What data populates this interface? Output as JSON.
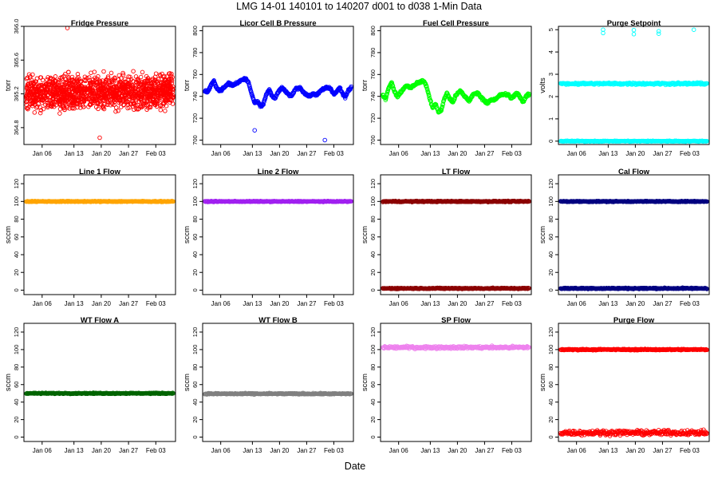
{
  "header": {
    "title": "LMG   14-01    140101 to 140207     d001 to d038   1-Min Data",
    "xlabel": "Date"
  },
  "chart_data": [
    {
      "type": "scatter",
      "title": "Fridge Pressure",
      "ylabel": "torr",
      "ylim": [
        364.6,
        366.0
      ],
      "yticks": [
        "364.8",
        "365.2",
        "365.6",
        "366.0"
      ],
      "color": "#ff0000",
      "xticks": [
        "Jan 06",
        "Jan 13",
        "Jan 20",
        "Jan 27",
        "Feb 03"
      ],
      "series": [
        {
          "name": "band",
          "kind": "noise",
          "center": 365.22,
          "spread": 0.28,
          "drift": 0.1,
          "count": 1400
        }
      ],
      "outliers": [
        {
          "x": 0.28,
          "y": 365.98
        },
        {
          "x": 0.5,
          "y": 364.68
        }
      ]
    },
    {
      "type": "scatter",
      "title": "Licor Cell B Pressure",
      "ylabel": "torr",
      "ylim": [
        696,
        804
      ],
      "yticks": [
        "700",
        "720",
        "740",
        "760",
        "780",
        "800"
      ],
      "color": "#0000ff",
      "xticks": [
        "Jan 06",
        "Jan 13",
        "Jan 20",
        "Jan 27",
        "Feb 03"
      ],
      "series": [
        {
          "name": "trace",
          "kind": "curve",
          "points": [
            [
              0,
              745
            ],
            [
              0.02,
              744
            ],
            [
              0.04,
              750
            ],
            [
              0.06,
              754
            ],
            [
              0.08,
              748
            ],
            [
              0.1,
              745
            ],
            [
              0.13,
              748
            ],
            [
              0.16,
              752
            ],
            [
              0.19,
              750
            ],
            [
              0.22,
              752
            ],
            [
              0.25,
              755
            ],
            [
              0.28,
              756
            ],
            [
              0.3,
              752
            ],
            [
              0.32,
              742
            ],
            [
              0.34,
              734
            ],
            [
              0.36,
              735
            ],
            [
              0.38,
              731
            ],
            [
              0.4,
              733
            ],
            [
              0.42,
              742
            ],
            [
              0.44,
              746
            ],
            [
              0.46,
              740
            ],
            [
              0.48,
              738
            ],
            [
              0.5,
              744
            ],
            [
              0.53,
              748
            ],
            [
              0.56,
              743
            ],
            [
              0.59,
              740
            ],
            [
              0.62,
              747
            ],
            [
              0.65,
              748
            ],
            [
              0.68,
              743
            ],
            [
              0.71,
              740
            ],
            [
              0.74,
              742
            ],
            [
              0.77,
              742
            ],
            [
              0.8,
              746
            ],
            [
              0.83,
              748
            ],
            [
              0.86,
              747
            ],
            [
              0.88,
              742
            ],
            [
              0.9,
              744
            ],
            [
              0.92,
              748
            ],
            [
              0.94,
              743
            ],
            [
              0.96,
              739
            ],
            [
              0.98,
              745
            ],
            [
              1.0,
              748
            ]
          ],
          "spread": 1.5
        }
      ],
      "outliers": [
        {
          "x": 0.34,
          "y": 709
        },
        {
          "x": 0.82,
          "y": 700
        }
      ]
    },
    {
      "type": "scatter",
      "title": "Fuel Cell Pressure",
      "ylabel": "torr",
      "ylim": [
        696,
        804
      ],
      "yticks": [
        "700",
        "720",
        "740",
        "760",
        "780",
        "800"
      ],
      "color": "#00ff00",
      "xticks": [
        "Jan 06",
        "Jan 13",
        "Jan 20",
        "Jan 27",
        "Feb 03"
      ],
      "series": [
        {
          "name": "trace",
          "kind": "curve",
          "points": [
            [
              0,
              741
            ],
            [
              0.02,
              738
            ],
            [
              0.04,
              748
            ],
            [
              0.06,
              753
            ],
            [
              0.08,
              744
            ],
            [
              0.1,
              740
            ],
            [
              0.13,
              745
            ],
            [
              0.16,
              750
            ],
            [
              0.19,
              748
            ],
            [
              0.22,
              751
            ],
            [
              0.25,
              753
            ],
            [
              0.28,
              754
            ],
            [
              0.3,
              749
            ],
            [
              0.32,
              738
            ],
            [
              0.34,
              730
            ],
            [
              0.36,
              733
            ],
            [
              0.38,
              726
            ],
            [
              0.4,
              727
            ],
            [
              0.42,
              738
            ],
            [
              0.44,
              743
            ],
            [
              0.46,
              737
            ],
            [
              0.48,
              735
            ],
            [
              0.5,
              741
            ],
            [
              0.53,
              745
            ],
            [
              0.56,
              740
            ],
            [
              0.59,
              736
            ],
            [
              0.62,
              742
            ],
            [
              0.65,
              743
            ],
            [
              0.68,
              738
            ],
            [
              0.71,
              734
            ],
            [
              0.74,
              737
            ],
            [
              0.77,
              737
            ],
            [
              0.8,
              741
            ],
            [
              0.83,
              742
            ],
            [
              0.86,
              741
            ],
            [
              0.88,
              738
            ],
            [
              0.9,
              741
            ],
            [
              0.92,
              743
            ],
            [
              0.94,
              739
            ],
            [
              0.96,
              735
            ],
            [
              0.98,
              740
            ],
            [
              1.0,
              742
            ]
          ],
          "spread": 1.6
        }
      ],
      "outliers": []
    },
    {
      "type": "scatter",
      "title": "Purge Setpoint",
      "ylabel": "volts",
      "ylim": [
        -0.15,
        5.15
      ],
      "yticks": [
        "0",
        "1",
        "2",
        "3",
        "4",
        "5"
      ],
      "color": "#00ffff",
      "xticks": [
        "Jan 06",
        "Jan 13",
        "Jan 20",
        "Jan 27",
        "Feb 03"
      ],
      "series": [
        {
          "name": "high",
          "kind": "band",
          "value": 2.58,
          "spread": 0.07
        },
        {
          "name": "low",
          "kind": "band",
          "value": 0.0,
          "spread": 0.03
        }
      ],
      "outliers": [
        {
          "x": 0.29,
          "y": 5.0
        },
        {
          "x": 0.29,
          "y": 4.85
        },
        {
          "x": 0.5,
          "y": 4.98
        },
        {
          "x": 0.5,
          "y": 4.8
        },
        {
          "x": 0.67,
          "y": 4.93
        },
        {
          "x": 0.67,
          "y": 4.82
        },
        {
          "x": 0.91,
          "y": 5.0
        }
      ]
    },
    {
      "type": "scatter",
      "title": "Line 1 Flow",
      "ylabel": "sccm",
      "ylim": [
        -5,
        130
      ],
      "yticks": [
        "0",
        "20",
        "40",
        "60",
        "80",
        "100",
        "120"
      ],
      "color": "#ffa500",
      "xticks": [
        "Jan 06",
        "Jan 13",
        "Jan 20",
        "Jan 27",
        "Feb 03"
      ],
      "series": [
        {
          "name": "flow",
          "kind": "band",
          "value": 100,
          "spread": 0.7
        }
      ],
      "outliers": []
    },
    {
      "type": "scatter",
      "title": "Line 2 Flow",
      "ylabel": "sccm",
      "ylim": [
        -5,
        130
      ],
      "yticks": [
        "0",
        "20",
        "40",
        "60",
        "80",
        "100",
        "120"
      ],
      "color": "#a020f0",
      "xticks": [
        "Jan 06",
        "Jan 13",
        "Jan 20",
        "Jan 27",
        "Feb 03"
      ],
      "series": [
        {
          "name": "flow",
          "kind": "band",
          "value": 100,
          "spread": 0.7
        }
      ],
      "outliers": []
    },
    {
      "type": "scatter",
      "title": "LT Flow",
      "ylabel": "sccm",
      "ylim": [
        -5,
        130
      ],
      "yticks": [
        "0",
        "20",
        "40",
        "60",
        "80",
        "100",
        "120"
      ],
      "color": "#8b0000",
      "xticks": [
        "Jan 06",
        "Jan 13",
        "Jan 20",
        "Jan 27",
        "Feb 03"
      ],
      "series": [
        {
          "name": "high",
          "kind": "band",
          "value": 100,
          "spread": 0.9
        },
        {
          "name": "low",
          "kind": "band",
          "value": 2,
          "spread": 0.9
        }
      ],
      "outliers": []
    },
    {
      "type": "scatter",
      "title": "Cal Flow",
      "ylabel": "sccm",
      "ylim": [
        -5,
        130
      ],
      "yticks": [
        "0",
        "20",
        "40",
        "60",
        "80",
        "100",
        "120"
      ],
      "color": "#000080",
      "xticks": [
        "Jan 06",
        "Jan 13",
        "Jan 20",
        "Jan 27",
        "Feb 03"
      ],
      "series": [
        {
          "name": "high",
          "kind": "band",
          "value": 100,
          "spread": 0.8
        },
        {
          "name": "low",
          "kind": "band",
          "value": 2,
          "spread": 1.0
        }
      ],
      "outliers": []
    },
    {
      "type": "scatter",
      "title": "WT Flow A",
      "ylabel": "sccm",
      "ylim": [
        -5,
        130
      ],
      "yticks": [
        "0",
        "20",
        "40",
        "60",
        "80",
        "100",
        "120"
      ],
      "color": "#006400",
      "xticks": [
        "Jan 06",
        "Jan 13",
        "Jan 20",
        "Jan 27",
        "Feb 03"
      ],
      "series": [
        {
          "name": "flow",
          "kind": "band",
          "value": 50,
          "spread": 0.8
        }
      ],
      "outliers": []
    },
    {
      "type": "scatter",
      "title": "WT Flow B",
      "ylabel": "sccm",
      "ylim": [
        -5,
        130
      ],
      "yticks": [
        "0",
        "20",
        "40",
        "60",
        "80",
        "100",
        "120"
      ],
      "color": "#808080",
      "xticks": [
        "Jan 06",
        "Jan 13",
        "Jan 20",
        "Jan 27",
        "Feb 03"
      ],
      "series": [
        {
          "name": "flow",
          "kind": "band",
          "value": 49.5,
          "spread": 1.0
        }
      ],
      "outliers": []
    },
    {
      "type": "scatter",
      "title": "SP Flow",
      "ylabel": "sccm",
      "ylim": [
        -5,
        130
      ],
      "yticks": [
        "0",
        "20",
        "40",
        "60",
        "80",
        "100",
        "120"
      ],
      "color": "#ee82ee",
      "xticks": [
        "Jan 06",
        "Jan 13",
        "Jan 20",
        "Jan 27",
        "Feb 03"
      ],
      "series": [
        {
          "name": "flow",
          "kind": "band",
          "value": 102.5,
          "spread": 2.2
        }
      ],
      "outliers": []
    },
    {
      "type": "scatter",
      "title": "Purge Flow",
      "ylabel": "sccm",
      "ylim": [
        -5,
        130
      ],
      "yticks": [
        "0",
        "20",
        "40",
        "60",
        "80",
        "100",
        "120"
      ],
      "color": "#ff0000",
      "xticks": [
        "Jan 06",
        "Jan 13",
        "Jan 20",
        "Jan 27",
        "Feb 03"
      ],
      "series": [
        {
          "name": "high",
          "kind": "band",
          "value": 100,
          "spread": 1.0
        },
        {
          "name": "low",
          "kind": "band",
          "value": 5,
          "spread": 4.0
        }
      ],
      "outliers": []
    }
  ]
}
